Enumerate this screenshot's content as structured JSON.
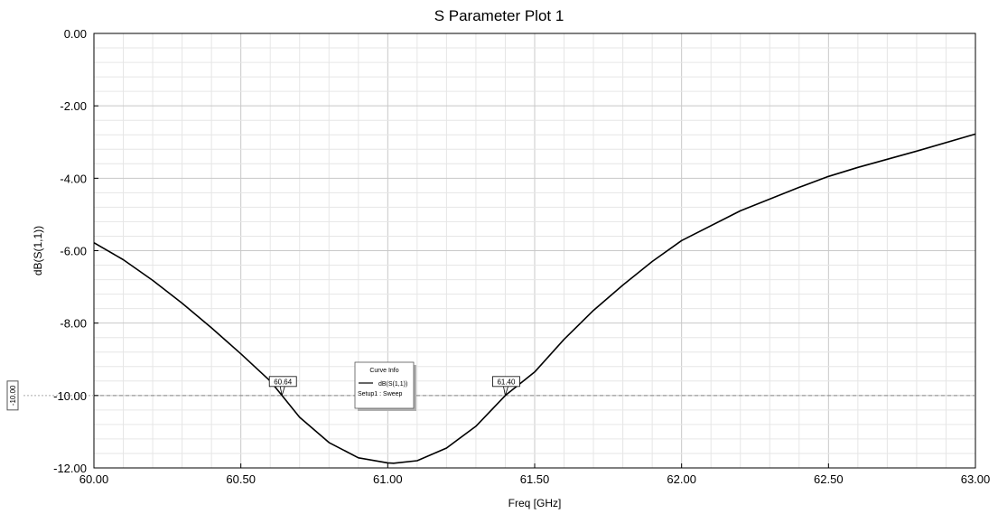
{
  "chart_data": {
    "type": "line",
    "title": "S Parameter Plot 1",
    "xlabel": "Freq [GHz]",
    "ylabel": "dB(S(1,1))",
    "xlim": [
      60.0,
      63.0
    ],
    "ylim": [
      -12.0,
      0.0
    ],
    "x_ticks": [
      "60.00",
      "60.50",
      "61.00",
      "61.50",
      "62.00",
      "62.50",
      "63.00"
    ],
    "y_ticks": [
      "0.00",
      "-2.00",
      "-4.00",
      "-6.00",
      "-8.00",
      "-10.00",
      "-12.00"
    ],
    "grid": true,
    "series": [
      {
        "name": "dB(S(1,1))",
        "color": "#000000",
        "x": [
          60.0,
          60.1,
          60.2,
          60.3,
          60.4,
          60.5,
          60.6,
          60.64,
          60.7,
          60.8,
          60.9,
          61.0,
          61.02,
          61.1,
          61.2,
          61.3,
          61.4,
          61.5,
          61.6,
          61.7,
          61.8,
          61.9,
          62.0,
          62.2,
          62.4,
          62.5,
          62.6,
          62.8,
          63.0
        ],
        "y": [
          -5.78,
          -6.25,
          -6.82,
          -7.45,
          -8.13,
          -8.85,
          -9.6,
          -10.0,
          -10.6,
          -11.3,
          -11.72,
          -11.86,
          -11.87,
          -11.8,
          -11.45,
          -10.85,
          -10.0,
          -9.35,
          -8.45,
          -7.65,
          -6.95,
          -6.3,
          -5.72,
          -4.9,
          -4.25,
          -3.95,
          -3.7,
          -3.25,
          -2.78
        ]
      }
    ],
    "threshold_line": {
      "y": -10.0,
      "label": "-10.00",
      "color": "#888888"
    },
    "markers": [
      {
        "x": 60.64,
        "y": -10.0,
        "label": "60.64"
      },
      {
        "x": 61.4,
        "y": -10.0,
        "label": "61.40"
      }
    ],
    "legend": {
      "title": "Curve Info",
      "entry": "dB(S(1,1))",
      "subtitle": "Setup1 : Sweep",
      "placement": "center"
    }
  }
}
